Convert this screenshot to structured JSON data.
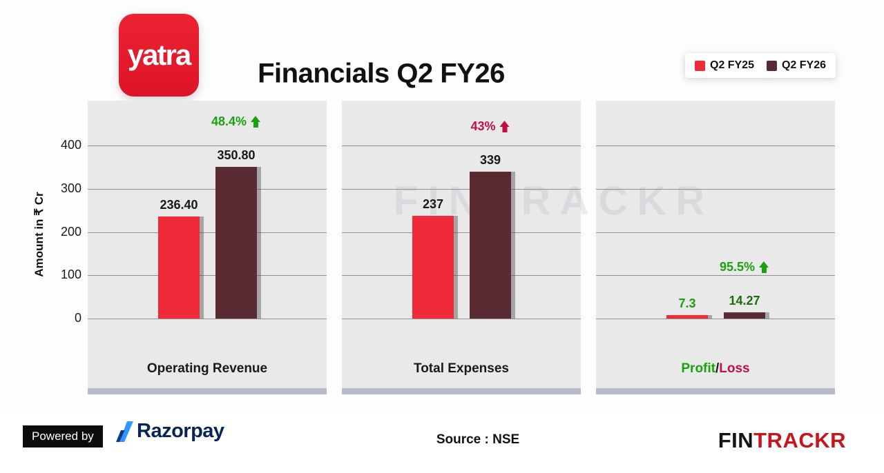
{
  "header": {
    "logo_text": "yatra",
    "title": "Financials Q2 FY26",
    "legend": [
      {
        "label": "Q2 FY25",
        "color": "#ef2b3a"
      },
      {
        "label": "Q2 FY26",
        "color": "#5a2a32"
      }
    ]
  },
  "chart_data": {
    "type": "bar",
    "title": "Financials Q2 FY26",
    "ylabel": "Amount in ₹ Cr",
    "ylim": [
      0,
      400
    ],
    "yticks": [
      0,
      100,
      200,
      300,
      400
    ],
    "grid": true,
    "legend_position": "top-right",
    "series_names": [
      "Q2 FY25",
      "Q2 FY26"
    ],
    "groups": [
      {
        "category": "Operating Revenue",
        "values": [
          236.4,
          350.8
        ],
        "value_labels": [
          "236.40",
          "350.80"
        ],
        "growth": {
          "text": "48.4%",
          "color": "#1ba10c"
        }
      },
      {
        "category": "Total Expenses",
        "values": [
          237,
          339
        ],
        "value_labels": [
          "237",
          "339"
        ],
        "growth": {
          "text": "43%",
          "color": "#c30f45"
        }
      },
      {
        "category": "Profit/Loss",
        "category_parts": [
          {
            "text": "Profit",
            "color": "#1ba10c"
          },
          {
            "text": "/",
            "color": "#191919"
          },
          {
            "text": "Loss",
            "color": "#c30f45"
          }
        ],
        "values": [
          7.3,
          14.27
        ],
        "value_labels": [
          "7.3",
          "14.27"
        ],
        "value_label_colors": [
          "#1ba10c",
          "#19700f"
        ],
        "growth": {
          "text": "95.5%",
          "color": "#1ba10c"
        }
      }
    ]
  },
  "watermark": "FINTRACKR",
  "footer": {
    "powered_by": "Powered by",
    "razorpay": "Razorpay",
    "source": "Source : NSE",
    "brand": {
      "fin": "FIN",
      "trackr": "TRACKR"
    }
  }
}
